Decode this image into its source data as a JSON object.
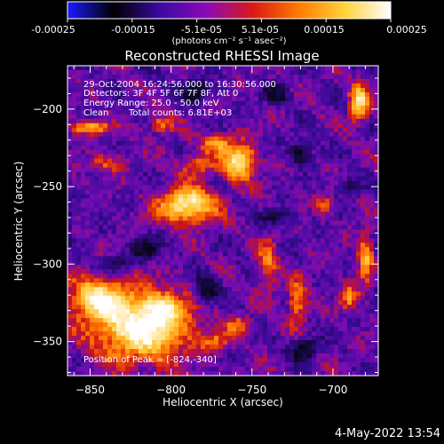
{
  "colorbar": {
    "ticks": [
      "-0.00025",
      "-0.00015",
      "-5.1e-05",
      "5.1e-05",
      "0.00015",
      "0.00025"
    ],
    "unit_label": "(photons cm⁻² s⁻¹ asec⁻²)",
    "range": [
      -0.00025,
      0.00025
    ],
    "colors": [
      "#1a1aff",
      "#000000",
      "#3a0aa0",
      "#8a0ab8",
      "#d81818",
      "#ff7a00",
      "#ffd23a",
      "#ffffff"
    ]
  },
  "info": {
    "time_range": "29-Oct-2004 16:24:56.000 to 16:30:56.000",
    "detectors": "Detectors: 3F 4F 5F 6F 7F 8F, Att 0",
    "energy_range": "Energy Range: 25.0 - 50.0 keV",
    "clean_label": "Clean",
    "total_counts": "Total counts: 6.81E+03",
    "peak_position": "Position of Peak = [-824,-340]"
  },
  "date_stamp": "4-May-2022 13:54",
  "chart_data": {
    "type": "heatmap",
    "title": "Reconstructed RHESSI Image",
    "xlabel": "Heliocentric X (arcsec)",
    "ylabel": "Heliocentric Y (arcsec)",
    "xlim": [
      -864,
      -672
    ],
    "ylim": [
      -372,
      -172
    ],
    "xticks": [
      -850,
      -800,
      -750,
      -700
    ],
    "yticks": [
      -350,
      -300,
      -250,
      -200
    ],
    "grid": false,
    "peak": [
      -824,
      -340
    ],
    "hotspots": [
      {
        "x": -818,
        "y": -340,
        "amp": 1.0,
        "sx": 20,
        "sy": 15
      },
      {
        "x": -846,
        "y": -322,
        "amp": 0.75,
        "sx": 11,
        "sy": 9
      },
      {
        "x": -790,
        "y": -262,
        "amp": 0.9,
        "sx": 12,
        "sy": 8
      },
      {
        "x": -758,
        "y": -234,
        "amp": 0.85,
        "sx": 7,
        "sy": 8
      },
      {
        "x": -772,
        "y": -222,
        "amp": 0.55,
        "sx": 6,
        "sy": 4
      },
      {
        "x": -784,
        "y": -236,
        "amp": 0.4,
        "sx": 8,
        "sy": 5
      },
      {
        "x": -850,
        "y": -212,
        "amp": 0.6,
        "sx": 9,
        "sy": 3
      },
      {
        "x": -806,
        "y": -210,
        "amp": 0.45,
        "sx": 5,
        "sy": 4
      },
      {
        "x": -684,
        "y": -196,
        "amp": 0.8,
        "sx": 4,
        "sy": 8
      },
      {
        "x": -680,
        "y": -296,
        "amp": 0.6,
        "sx": 3,
        "sy": 11
      },
      {
        "x": -690,
        "y": -322,
        "amp": 0.45,
        "sx": 4,
        "sy": 6
      },
      {
        "x": -740,
        "y": -300,
        "amp": 0.45,
        "sx": 4,
        "sy": 12
      },
      {
        "x": -722,
        "y": -325,
        "amp": 0.5,
        "sx": 4,
        "sy": 10
      },
      {
        "x": -758,
        "y": -340,
        "amp": 0.4,
        "sx": 6,
        "sy": 4
      },
      {
        "x": -805,
        "y": -328,
        "amp": 0.45,
        "sx": 7,
        "sy": 6
      },
      {
        "x": -773,
        "y": -350,
        "amp": 0.35,
        "sx": 6,
        "sy": 4
      },
      {
        "x": -705,
        "y": -262,
        "amp": 0.35,
        "sx": 4,
        "sy": 4
      },
      {
        "x": -840,
        "y": -235,
        "amp": 0.35,
        "sx": 8,
        "sy": 4
      }
    ],
    "coldspots": [
      {
        "x": -785,
        "y": -188,
        "amp": -0.6,
        "sx": 5,
        "sy": 5
      },
      {
        "x": -778,
        "y": -316,
        "amp": -0.55,
        "sx": 5,
        "sy": 6
      },
      {
        "x": -718,
        "y": -355,
        "amp": -0.5,
        "sx": 6,
        "sy": 5
      },
      {
        "x": -815,
        "y": -290,
        "amp": -0.45,
        "sx": 6,
        "sy": 5
      },
      {
        "x": -720,
        "y": -228,
        "amp": -0.45,
        "sx": 5,
        "sy": 5
      },
      {
        "x": -865,
        "y": -270,
        "amp": -0.4,
        "sx": 4,
        "sy": 5
      },
      {
        "x": -690,
        "y": -250,
        "amp": -0.4,
        "sx": 4,
        "sy": 4
      },
      {
        "x": -735,
        "y": -190,
        "amp": -0.5,
        "sx": 5,
        "sy": 4
      },
      {
        "x": -835,
        "y": -300,
        "amp": -0.4,
        "sx": 5,
        "sy": 4
      },
      {
        "x": -735,
        "y": -270,
        "amp": -0.35,
        "sx": 6,
        "sy": 4
      }
    ]
  }
}
